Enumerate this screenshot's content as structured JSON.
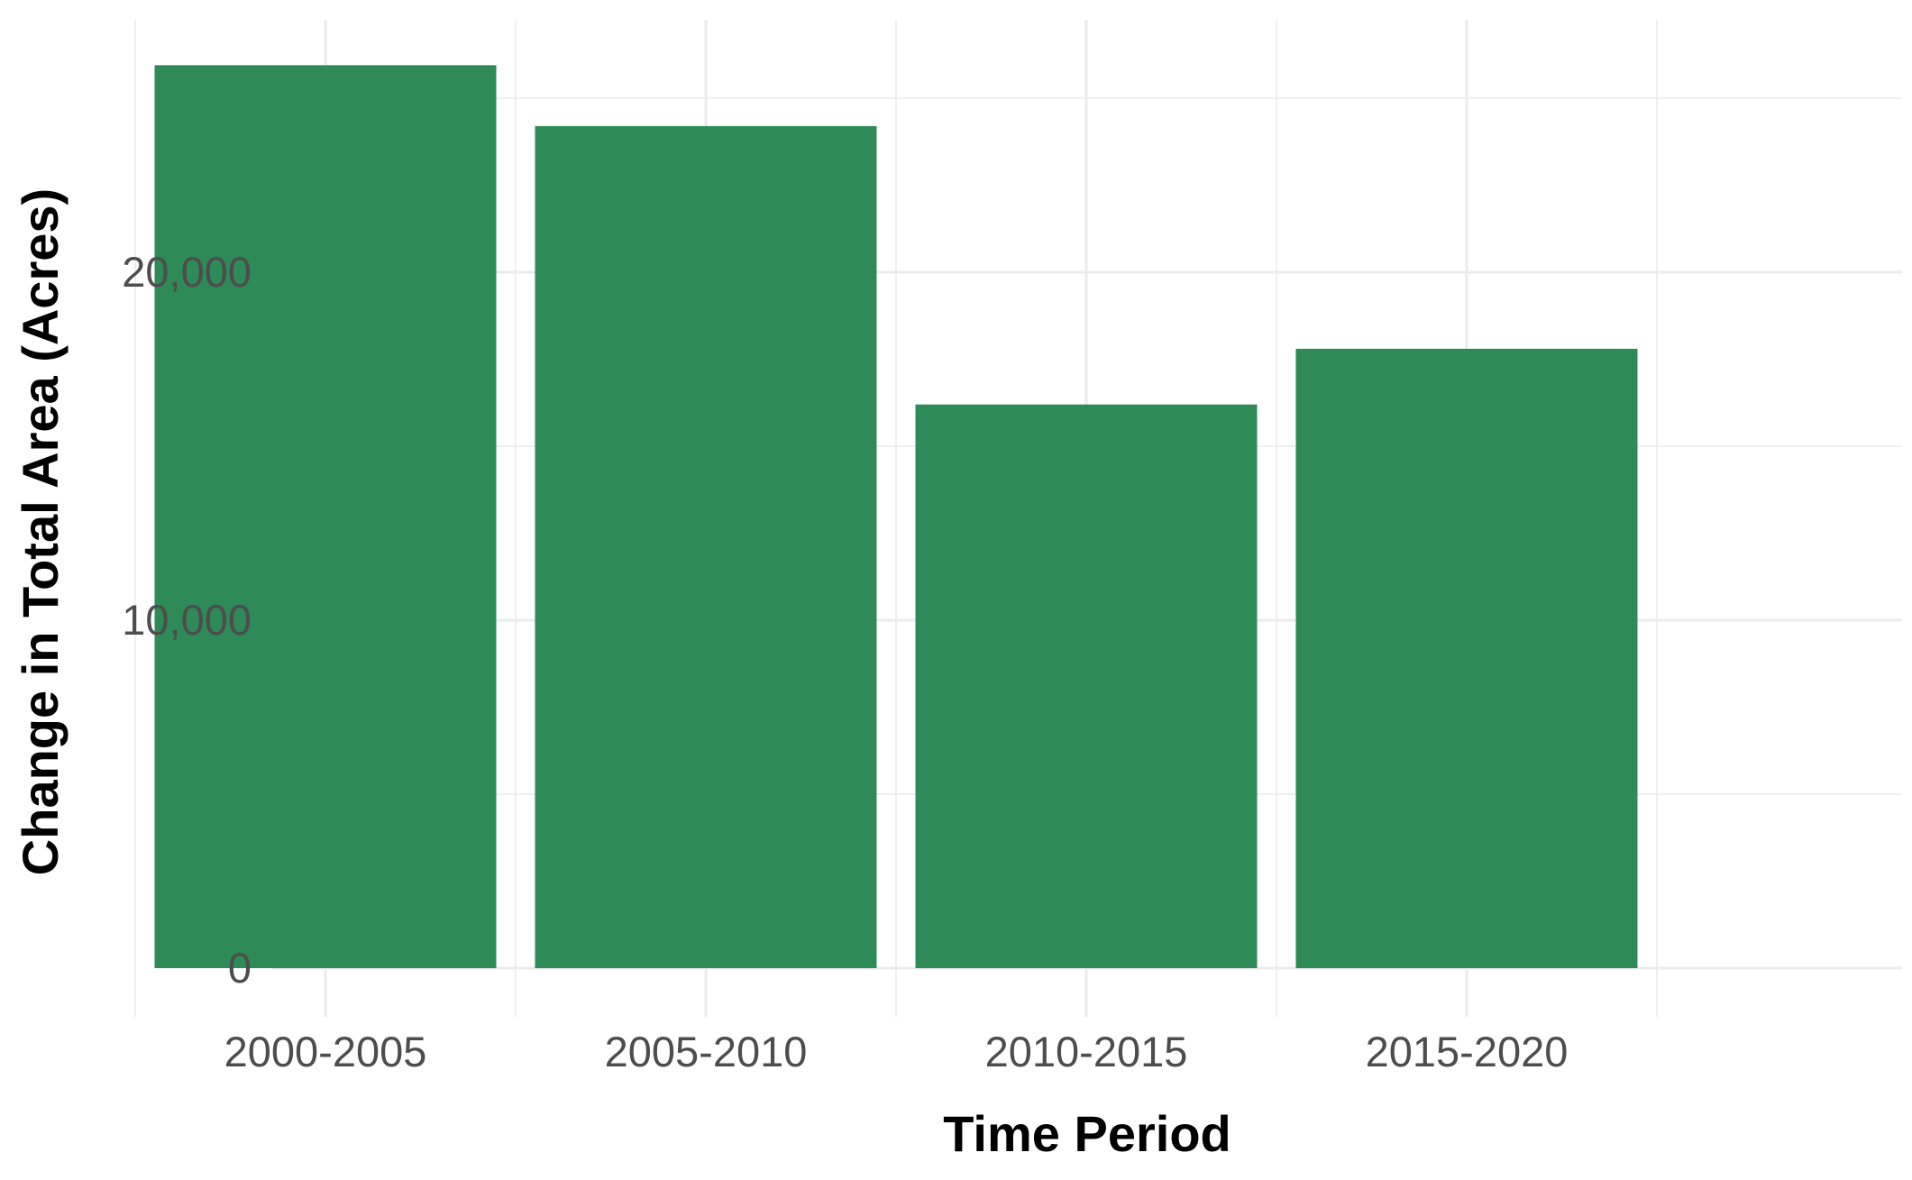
{
  "chart_data": {
    "type": "bar",
    "title": "",
    "xlabel": "Time Period",
    "ylabel": "Change in Total Area (Acres)",
    "categories": [
      "2000-2005",
      "2005-2010",
      "2010-2015",
      "2015-2020"
    ],
    "values": [
      25950,
      24200,
      16200,
      17800
    ],
    "ylim": [
      0,
      27000
    ],
    "yticks": [
      0,
      10000,
      20000
    ],
    "ytick_labels": [
      "0",
      "10,000",
      "20,000"
    ],
    "grid": true,
    "legend": "none",
    "bar_color": "#2e8b57"
  }
}
